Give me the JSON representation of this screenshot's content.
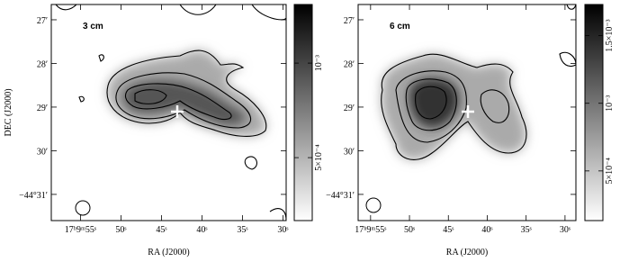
{
  "chart_data": [
    {
      "type": "image",
      "label": "3 cm",
      "x_label": "RA (J2000)",
      "y_label": "DEC (J2000)",
      "xlim": [
        58.6,
        29.6
      ],
      "xticks": [
        {
          "value": 55,
          "label": "17ʰ9ᵐ55ˢ"
        },
        {
          "value": 50,
          "label": "50ˢ"
        },
        {
          "value": 45,
          "label": "45ˢ"
        },
        {
          "value": 40,
          "label": "40ˢ"
        },
        {
          "value": 35,
          "label": "35ˢ"
        },
        {
          "value": 30,
          "label": "30ˢ"
        }
      ],
      "ylim": [
        26.65,
        31.6
      ],
      "yticks": [
        {
          "value": 27,
          "label": "27′"
        },
        {
          "value": 28,
          "label": "28′"
        },
        {
          "value": 29,
          "label": "29′"
        },
        {
          "value": 30,
          "label": "30′"
        },
        {
          "value": 31,
          "label": "−44°31′"
        }
      ],
      "colorbar": {
        "lim": [
          0.000167,
          0.00131
        ],
        "ticks": [
          {
            "value": 0.0005,
            "label": "5×10⁻⁴"
          },
          {
            "value": 0.001,
            "label": "10⁻³"
          }
        ]
      }
    },
    {
      "type": "image",
      "label": "6 cm",
      "x_label": "RA (J2000)",
      "xlim": [
        56.6,
        28.6
      ],
      "xticks": [
        {
          "value": 55,
          "label": "17ʰ9ᵐ55ˢ"
        },
        {
          "value": 50,
          "label": "50ˢ"
        },
        {
          "value": 45,
          "label": "45ˢ"
        },
        {
          "value": 40,
          "label": "40ˢ"
        },
        {
          "value": 35,
          "label": "35ˢ"
        },
        {
          "value": 30,
          "label": "30ˢ"
        }
      ],
      "ylim": [
        26.65,
        31.6
      ],
      "yticks": [
        {
          "value": 27,
          "label": "27′"
        },
        {
          "value": 28,
          "label": "28′"
        },
        {
          "value": 29,
          "label": "29′"
        },
        {
          "value": 30,
          "label": "30′"
        },
        {
          "value": 31,
          "label": "−44°31′"
        }
      ],
      "colorbar": {
        "lim": [
          0.000133,
          0.00173
        ],
        "ticks": [
          {
            "value": 0.0005,
            "label": "5×10⁻⁴"
          },
          {
            "value": 0.001,
            "label": "10⁻³"
          },
          {
            "value": 0.0015,
            "label": "1.5×10⁻³"
          }
        ]
      }
    }
  ]
}
